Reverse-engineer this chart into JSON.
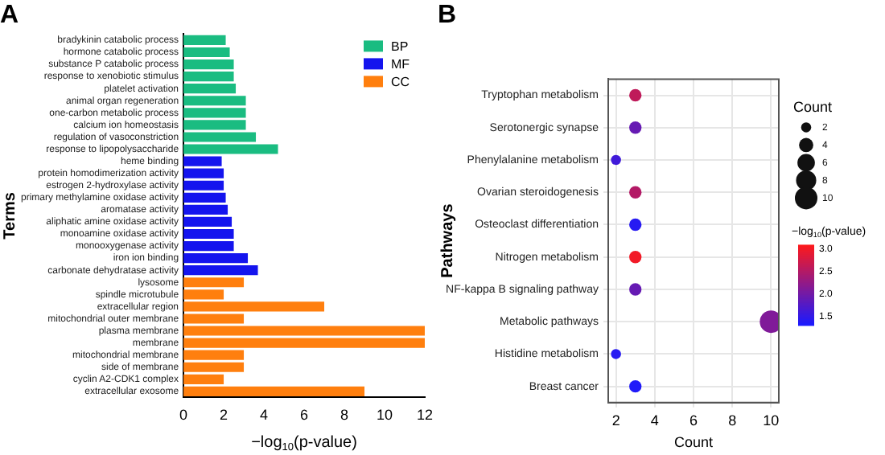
{
  "chart_data": [
    {
      "type": "bar",
      "title": "A",
      "orientation": "horizontal",
      "stacked": true,
      "categories": [
        "bradykinin catabolic process",
        "hormone catabolic process",
        "substance P catabolic process",
        "response to xenobiotic stimulus",
        "platelet activation",
        "animal organ regeneration",
        "one-carbon metabolic process",
        "calcium ion homeostasis",
        "regulation of vasoconstriction",
        "response to lipopolysaccharide",
        "heme binding",
        "protein homodimerization activity",
        "estrogen 2-hydroxylase activity",
        "primary methylamine oxidase activity",
        "aromatase activity",
        "aliphatic amine oxidase activity",
        "monoamine oxidase activity",
        "monooxygenase activity",
        "iron ion binding",
        "carbonate dehydratase activity",
        "lysosome",
        "spindle microtubule",
        "extracellular region",
        "mitochondrial outer membrane",
        "plasma membrane",
        "membrane",
        "mitochondrial membrane",
        "side of membrane",
        "cyclin A2-CDK1 complex",
        "extracellular exosome"
      ],
      "series": [
        {
          "name": "BP",
          "color": "#1abc81",
          "values": [
            2.1,
            2.3,
            2.5,
            2.5,
            2.6,
            3.1,
            3.1,
            3.1,
            3.6,
            4.7,
            null,
            null,
            null,
            null,
            null,
            null,
            null,
            null,
            null,
            null,
            null,
            null,
            null,
            null,
            null,
            null,
            null,
            null,
            null,
            null
          ]
        },
        {
          "name": "MF",
          "color": "#1414ee",
          "values": [
            null,
            null,
            null,
            null,
            null,
            null,
            null,
            null,
            null,
            null,
            1.9,
            2.0,
            2.0,
            2.1,
            2.2,
            2.4,
            2.5,
            2.5,
            3.2,
            3.7,
            null,
            null,
            null,
            null,
            null,
            null,
            null,
            null,
            null,
            null
          ]
        },
        {
          "name": "CC",
          "color": "#ff7f0e",
          "values": [
            null,
            null,
            null,
            null,
            null,
            null,
            null,
            null,
            null,
            null,
            null,
            null,
            null,
            null,
            null,
            null,
            null,
            null,
            null,
            null,
            3,
            2,
            7,
            3,
            12,
            12,
            3,
            3,
            2,
            9
          ]
        }
      ],
      "xlim": [
        0,
        12
      ],
      "xticks": [
        0,
        2,
        4,
        6,
        8,
        10,
        12
      ],
      "xlabel": "−log$_{10}$(p-value)",
      "ylabel": "Terms",
      "legend": "top right",
      "grid": false
    },
    {
      "type": "bubble",
      "title": "B",
      "orientation": "horizontal",
      "categories": [
        "Tryptophan metabolism",
        "Serotonergic synapse",
        "Phenylalanine metabolism",
        "Ovarian steroidogenesis",
        "Osteoclast differentiation",
        "Nitrogen metabolism",
        "NF-kappa B signaling pathway",
        "Metabolic pathways",
        "Histidine metabolism",
        "Breast cancer"
      ],
      "values": [
        3,
        3,
        2,
        3,
        3,
        3,
        3,
        10,
        2,
        3
      ],
      "sizes": [
        3,
        3,
        2,
        3,
        3,
        3,
        3,
        10,
        2,
        3
      ],
      "size_legend": [
        2,
        4,
        6,
        8,
        10
      ],
      "legend_title": "Count",
      "cvalues": [
        2.6,
        1.9,
        1.6,
        2.5,
        1.4,
        3.0,
        1.9,
        2.1,
        1.4,
        1.35
      ],
      "clim": [
        1.3,
        3.1
      ],
      "cticks": [
        1.5,
        {
          "value": 2,
          "label": "2.0"
        },
        2.5,
        {
          "value": 3,
          "label": "3.0"
        }
      ],
      "clabel": "−log$_{10}$(p-value)",
      "xlim": [
        1.6,
        10.4
      ],
      "xticks": [
        2,
        4,
        6,
        8,
        10
      ],
      "xlabel": "Count",
      "ylabel": "Pathways",
      "grid": true
    }
  ]
}
